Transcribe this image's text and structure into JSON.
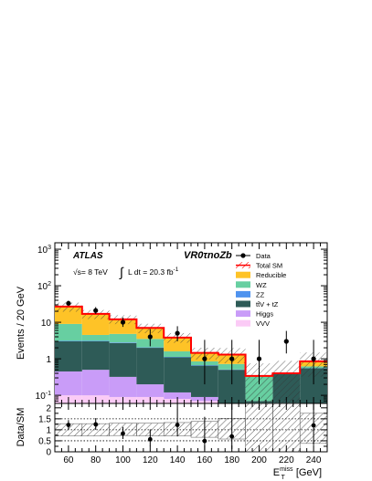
{
  "chart_data": [
    {
      "type": "histogram",
      "experiment": "ATLAS",
      "energy": "√s= 8 TeV",
      "lumi_prefix": "L dt = 20.3 fb",
      "lumi_sup": "-1",
      "region": "VR0τnoZb",
      "ylabel": "Events / 20 GeV",
      "xlabel_main": "E",
      "xlabel_sup": "miss",
      "xlabel_sub": "T",
      "xlabel_unit": "[GeV]",
      "yscale": "log",
      "ylim": [
        0.06,
        1500
      ],
      "xlim": [
        50,
        250
      ],
      "bin_edges": [
        50,
        70,
        90,
        110,
        130,
        150,
        170,
        190,
        210,
        230,
        250
      ],
      "x_ticks": [
        60,
        80,
        100,
        120,
        140,
        160,
        180,
        200,
        220,
        240
      ],
      "y_ticks": [
        {
          "value": 0.1,
          "base": "10",
          "exp": "-1"
        },
        {
          "value": 1,
          "label": "1"
        },
        {
          "value": 10,
          "label": "10"
        },
        {
          "value": 100,
          "base": "10",
          "exp": "2"
        },
        {
          "value": 1000,
          "base": "10",
          "exp": "3"
        }
      ],
      "legend": [
        {
          "label": "Data",
          "kind": "marker",
          "color": "#000000"
        },
        {
          "label": "Total SM",
          "kind": "hatch",
          "color": "#ff0000"
        },
        {
          "label": "Reducible",
          "kind": "box",
          "color": "#fec327"
        },
        {
          "label": "WZ",
          "kind": "box",
          "color": "#67cfa1"
        },
        {
          "label": "ZZ",
          "kind": "box",
          "color": "#4f93ef"
        },
        {
          "label": "tt̄V + tZ",
          "kind": "box",
          "color": "#2e5b57"
        },
        {
          "label": "Higgs",
          "kind": "box",
          "color": "#c99cf8"
        },
        {
          "label": "VVV",
          "kind": "box",
          "color": "#fbcbf6"
        }
      ],
      "stack_order_bottom_to_top": [
        "VVV",
        "Higgs",
        "tt̄V + tZ",
        "ZZ",
        "WZ",
        "Reducible"
      ],
      "stack": [
        {
          "name": "VVV",
          "color": "#fbcbf6",
          "values": [
            0.1,
            0.1,
            0.09,
            0.09,
            0.08,
            0.07,
            0.06,
            0.05,
            0.05,
            0.06
          ]
        },
        {
          "name": "Higgs",
          "color": "#c99cf8",
          "values": [
            0.45,
            0.5,
            0.32,
            0.2,
            0.12,
            0.09,
            0.06,
            0.06,
            0.05,
            0.06
          ]
        },
        {
          "name": "tt̄V + tZ",
          "color": "#2e5b57",
          "values": [
            3.0,
            3.0,
            2.7,
            2.0,
            1.1,
            0.65,
            0.5,
            0.07,
            0.38,
            0.55
          ]
        },
        {
          "name": "ZZ",
          "color": "#4f93ef",
          "values": [
            3.1,
            3.1,
            2.8,
            2.05,
            1.13,
            0.67,
            0.51,
            0.07,
            0.38,
            0.56
          ]
        },
        {
          "name": "WZ",
          "color": "#67cfa1",
          "values": [
            9.0,
            4.5,
            4.8,
            3.5,
            1.6,
            0.85,
            0.72,
            0.32,
            0.4,
            0.62
          ]
        },
        {
          "name": "Reducible",
          "color": "#fec327",
          "values": [
            27,
            17,
            12,
            7.0,
            3.8,
            1.45,
            1.3,
            0.34,
            0.4,
            0.85
          ]
        }
      ],
      "data_points": [
        {
          "x": 60,
          "y": 33,
          "err": [
            4,
            6
          ]
        },
        {
          "x": 80,
          "y": 21,
          "err": [
            4,
            5
          ]
        },
        {
          "x": 100,
          "y": 10,
          "err": [
            2.5,
            3.5
          ]
        },
        {
          "x": 120,
          "y": 4.0,
          "err": [
            1.8,
            2.5
          ]
        },
        {
          "x": 140,
          "y": 5.0,
          "err": [
            2.0,
            2.8
          ]
        },
        {
          "x": 160,
          "y": 1.0,
          "err": [
            0.8,
            2.3
          ]
        },
        {
          "x": 180,
          "y": 1.0,
          "err": [
            0.8,
            2.3
          ]
        },
        {
          "x": 200,
          "y": 1.0,
          "err": [
            0.8,
            2.3
          ]
        },
        {
          "x": 220,
          "y": 3.0,
          "err": [
            1.6,
            2.8
          ]
        },
        {
          "x": 240,
          "y": 1.0,
          "err": [
            0.8,
            2.3
          ]
        }
      ]
    },
    {
      "type": "ratio",
      "ylabel": "Data/SM",
      "ylim": [
        0,
        2.2
      ],
      "y_ticks": [
        0,
        0.5,
        1,
        1.5,
        2
      ],
      "dotted_lines": [
        0.5,
        1,
        1.5
      ],
      "band": [
        {
          "lo": 0.72,
          "hi": 1.28
        },
        {
          "lo": 0.72,
          "hi": 1.28
        },
        {
          "lo": 0.74,
          "hi": 1.3
        },
        {
          "lo": 0.72,
          "hi": 1.3
        },
        {
          "lo": 0.72,
          "hi": 1.33
        },
        {
          "lo": 0.66,
          "hi": 1.38
        },
        {
          "lo": 0.58,
          "hi": 1.52
        },
        {
          "lo": 0.0,
          "hi": 2.2
        },
        {
          "lo": 0.0,
          "hi": 2.2
        },
        {
          "lo": 0.38,
          "hi": 1.75
        }
      ],
      "points": [
        {
          "x": 60,
          "y": 1.22,
          "err": [
            0.2,
            0.22
          ]
        },
        {
          "x": 80,
          "y": 1.25,
          "err": [
            0.25,
            0.28
          ]
        },
        {
          "x": 100,
          "y": 0.83,
          "err": [
            0.25,
            0.3
          ]
        },
        {
          "x": 120,
          "y": 0.57,
          "err": [
            0.3,
            0.45
          ]
        },
        {
          "x": 140,
          "y": 1.22,
          "err": [
            0.52,
            0.7
          ]
        },
        {
          "x": 160,
          "y": 0.49,
          "err": [
            0.42,
            1.1
          ]
        },
        {
          "x": 180,
          "y": 0.7,
          "err": [
            0.58,
            1.5
          ]
        },
        {
          "x": 240,
          "y": 1.2,
          "err": [
            0.9,
            1.5
          ]
        }
      ]
    }
  ]
}
